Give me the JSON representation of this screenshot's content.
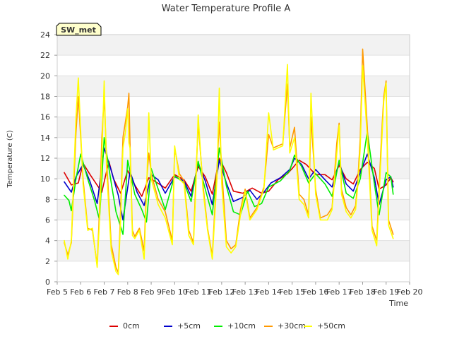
{
  "chart_data": {
    "type": "line",
    "title": "Water Temperature Profile A",
    "xlabel": "Time",
    "ylabel": "Temperature (C)",
    "station_label": "SW_met",
    "xlim": [
      5,
      20
    ],
    "ylim": [
      0,
      24
    ],
    "x_ticks": [
      {
        "value": 5,
        "label": "Feb 5"
      },
      {
        "value": 6,
        "label": "Feb 6"
      },
      {
        "value": 7,
        "label": "Feb 7"
      },
      {
        "value": 8,
        "label": "Feb 8"
      },
      {
        "value": 9,
        "label": "Feb 9"
      },
      {
        "value": 10,
        "label": "Feb 10"
      },
      {
        "value": 11,
        "label": "Feb 11"
      },
      {
        "value": 12,
        "label": "Feb 12"
      },
      {
        "value": 13,
        "label": "Feb 13"
      },
      {
        "value": 14,
        "label": "Feb 14"
      },
      {
        "value": 15,
        "label": "Feb 15"
      },
      {
        "value": 16,
        "label": "Feb 16"
      },
      {
        "value": 17,
        "label": "Feb 17"
      },
      {
        "value": 18,
        "label": "Feb 18"
      },
      {
        "value": 19,
        "label": "Feb 19"
      },
      {
        "value": 20,
        "label": "Feb 20"
      }
    ],
    "y_ticks": [
      0,
      2,
      4,
      6,
      8,
      10,
      12,
      14,
      16,
      18,
      20,
      22,
      24
    ],
    "grid": true,
    "legend_position": "bottom",
    "series": [
      {
        "name": "0cm",
        "color": "#dd0000",
        "x": [
          5.3,
          5.6,
          5.9,
          6.1,
          6.4,
          6.9,
          7.0,
          7.2,
          7.4,
          7.7,
          8.0,
          8.3,
          8.6,
          8.9,
          9.2,
          9.6,
          10.0,
          10.4,
          10.7,
          11.0,
          11.3,
          11.6,
          11.9,
          12.2,
          12.5,
          12.9,
          13.3,
          13.7,
          14.0,
          14.4,
          14.8,
          15.0,
          15.3,
          15.6,
          16.0,
          16.4,
          16.7,
          17.0,
          17.3,
          17.6,
          17.9,
          18.2,
          18.5,
          18.7,
          19.0,
          19.2,
          19.3
        ],
        "y": [
          10.6,
          9.4,
          9.6,
          11.5,
          10.4,
          8.7,
          9.7,
          11.7,
          10.0,
          8.6,
          10.8,
          9.4,
          8.3,
          10.1,
          9.7,
          9.1,
          10.4,
          9.9,
          8.8,
          11.2,
          10.2,
          8.5,
          12.0,
          10.6,
          8.8,
          8.6,
          9.1,
          8.6,
          8.8,
          9.9,
          10.5,
          11.0,
          11.8,
          11.4,
          10.4,
          10.4,
          9.9,
          11.3,
          10.0,
          9.5,
          10.9,
          11.6,
          11.0,
          9.0,
          9.4,
          10.1,
          9.7
        ]
      },
      {
        "name": "+5cm",
        "color": "#0000cc",
        "x": [
          5.3,
          5.6,
          5.8,
          6.1,
          6.4,
          6.7,
          7.0,
          7.3,
          7.6,
          7.8,
          8.1,
          8.4,
          8.7,
          9.0,
          9.3,
          9.6,
          10.0,
          10.4,
          10.7,
          11.0,
          11.3,
          11.6,
          11.9,
          12.2,
          12.5,
          12.9,
          13.2,
          13.5,
          13.8,
          14.1,
          14.5,
          14.9,
          15.1,
          15.4,
          15.7,
          16.0,
          16.4,
          16.7,
          17.0,
          17.3,
          17.6,
          17.9,
          18.2,
          18.5,
          18.7,
          19.0,
          19.2,
          19.3
        ],
        "y": [
          9.7,
          8.7,
          10.2,
          11.4,
          9.7,
          7.6,
          13.0,
          10.8,
          8.4,
          6.0,
          10.7,
          8.7,
          7.4,
          10.4,
          9.9,
          8.6,
          10.2,
          9.8,
          8.3,
          11.5,
          9.8,
          7.5,
          11.8,
          9.6,
          7.8,
          8.2,
          8.9,
          8.0,
          8.7,
          9.6,
          10.1,
          10.9,
          12.0,
          11.4,
          10.0,
          10.9,
          9.9,
          9.2,
          11.6,
          9.5,
          8.8,
          10.6,
          12.4,
          10.1,
          7.5,
          9.9,
          10.2,
          9.2
        ]
      },
      {
        "name": "+10cm",
        "color": "#00ee00",
        "x": [
          5.3,
          5.5,
          5.6,
          5.8,
          6.0,
          6.3,
          6.6,
          6.8,
          7.0,
          7.3,
          7.5,
          7.8,
          8.0,
          8.3,
          8.6,
          8.8,
          9.0,
          9.3,
          9.6,
          10.0,
          10.4,
          10.7,
          11.0,
          11.3,
          11.6,
          11.9,
          12.2,
          12.5,
          12.8,
          13.1,
          13.4,
          13.7,
          14.0,
          14.5,
          14.9,
          15.1,
          15.4,
          15.7,
          16.0,
          16.4,
          16.7,
          17.0,
          17.3,
          17.6,
          17.9,
          18.2,
          18.5,
          18.7,
          19.0,
          19.2,
          19.3
        ],
        "y": [
          8.4,
          7.9,
          6.9,
          10.0,
          12.4,
          10.0,
          7.8,
          6.0,
          14.0,
          9.6,
          6.8,
          4.6,
          11.8,
          8.5,
          7.0,
          5.8,
          11.0,
          9.0,
          7.0,
          10.3,
          9.6,
          7.8,
          11.7,
          9.0,
          6.5,
          13.0,
          9.3,
          6.8,
          6.5,
          8.8,
          7.3,
          7.6,
          9.2,
          9.8,
          10.8,
          12.3,
          11.2,
          9.6,
          10.5,
          9.5,
          8.3,
          11.8,
          8.6,
          8.1,
          10.0,
          14.6,
          9.5,
          6.5,
          10.6,
          10.2,
          8.5
        ]
      },
      {
        "name": "+30cm",
        "color": "#ff9900",
        "x": [
          5.3,
          5.45,
          5.6,
          5.8,
          5.9,
          6.1,
          6.3,
          6.5,
          6.7,
          6.8,
          6.9,
          7.0,
          7.1,
          7.3,
          7.5,
          7.6,
          7.7,
          7.8,
          7.9,
          8.0,
          8.05,
          8.1,
          8.2,
          8.3,
          8.5,
          8.7,
          8.8,
          8.9,
          9.0,
          9.3,
          9.6,
          9.9,
          10.0,
          10.2,
          10.4,
          10.6,
          10.8,
          10.9,
          11.0,
          11.2,
          11.4,
          11.6,
          11.8,
          11.9,
          12.0,
          12.2,
          12.4,
          12.6,
          12.8,
          13.0,
          13.2,
          13.5,
          13.8,
          14.0,
          14.2,
          14.4,
          14.6,
          14.8,
          14.9,
          15.1,
          15.3,
          15.5,
          15.7,
          15.8,
          16.0,
          16.2,
          16.5,
          16.7,
          16.9,
          17.0,
          17.1,
          17.3,
          17.5,
          17.7,
          17.8,
          17.9,
          18.0,
          18.2,
          18.4,
          18.6,
          18.8,
          18.9,
          19.0,
          19.1,
          19.3
        ],
        "y": [
          3.8,
          2.6,
          3.8,
          14.5,
          18.0,
          10.0,
          5.2,
          5.0,
          1.6,
          7.0,
          14.0,
          18.0,
          12.0,
          3.6,
          1.4,
          0.9,
          7.0,
          14.0,
          15.5,
          17.0,
          18.3,
          13.5,
          5.0,
          4.4,
          5.2,
          3.0,
          9.5,
          12.5,
          10.5,
          8.0,
          6.8,
          4.0,
          13.0,
          10.5,
          9.8,
          5.0,
          3.8,
          10.0,
          15.4,
          9.5,
          5.2,
          2.5,
          11.0,
          15.5,
          11.0,
          4.0,
          3.2,
          3.6,
          7.0,
          9.0,
          6.2,
          7.2,
          9.2,
          14.3,
          13.0,
          13.2,
          13.4,
          19.2,
          13.0,
          15.0,
          8.5,
          8.0,
          6.5,
          16.0,
          9.0,
          6.2,
          6.5,
          7.2,
          13.5,
          15.4,
          9.0,
          7.2,
          6.5,
          7.4,
          10.0,
          14.0,
          22.6,
          15.0,
          5.4,
          4.0,
          14.0,
          18.0,
          19.5,
          6.0,
          4.6
        ]
      },
      {
        "name": "+50cm",
        "color": "#ffff00",
        "x": [
          5.3,
          5.45,
          5.6,
          5.8,
          5.9,
          6.1,
          6.3,
          6.5,
          6.7,
          6.8,
          6.9,
          7.0,
          7.1,
          7.3,
          7.5,
          7.6,
          7.7,
          7.8,
          7.9,
          8.0,
          8.05,
          8.1,
          8.2,
          8.3,
          8.5,
          8.7,
          8.8,
          8.9,
          9.0,
          9.3,
          9.6,
          9.9,
          10.0,
          10.2,
          10.4,
          10.6,
          10.8,
          10.9,
          11.0,
          11.2,
          11.4,
          11.6,
          11.8,
          11.9,
          12.0,
          12.2,
          12.4,
          12.6,
          12.8,
          13.0,
          13.2,
          13.5,
          13.8,
          14.0,
          14.2,
          14.4,
          14.6,
          14.8,
          14.9,
          15.1,
          15.3,
          15.5,
          15.7,
          15.8,
          16.0,
          16.2,
          16.5,
          16.7,
          16.9,
          17.0,
          17.1,
          17.3,
          17.5,
          17.7,
          17.8,
          17.9,
          18.0,
          18.2,
          18.4,
          18.6,
          18.8,
          18.9,
          19.0,
          19.1,
          19.3
        ],
        "y": [
          4.0,
          2.2,
          4.0,
          16.0,
          19.8,
          9.5,
          5.0,
          5.2,
          1.4,
          6.0,
          12.0,
          19.5,
          11.0,
          3.0,
          1.0,
          0.7,
          6.0,
          13.0,
          14.5,
          16.8,
          13.5,
          13.0,
          4.5,
          4.2,
          5.0,
          2.2,
          8.5,
          16.4,
          10.0,
          7.5,
          6.2,
          3.6,
          13.2,
          10.0,
          9.5,
          4.5,
          3.6,
          9.0,
          16.2,
          9.0,
          5.0,
          2.2,
          10.0,
          18.8,
          9.5,
          3.4,
          2.8,
          3.4,
          6.5,
          8.8,
          6.0,
          7.0,
          9.0,
          16.4,
          12.8,
          13.0,
          13.2,
          21.1,
          12.5,
          14.0,
          8.0,
          7.5,
          6.2,
          18.3,
          8.5,
          6.0,
          6.0,
          7.0,
          12.5,
          15.2,
          8.5,
          6.8,
          6.2,
          7.0,
          9.5,
          13.0,
          21.0,
          14.0,
          5.0,
          3.5,
          13.0,
          17.5,
          19.3,
          5.5,
          4.2
        ]
      }
    ]
  }
}
